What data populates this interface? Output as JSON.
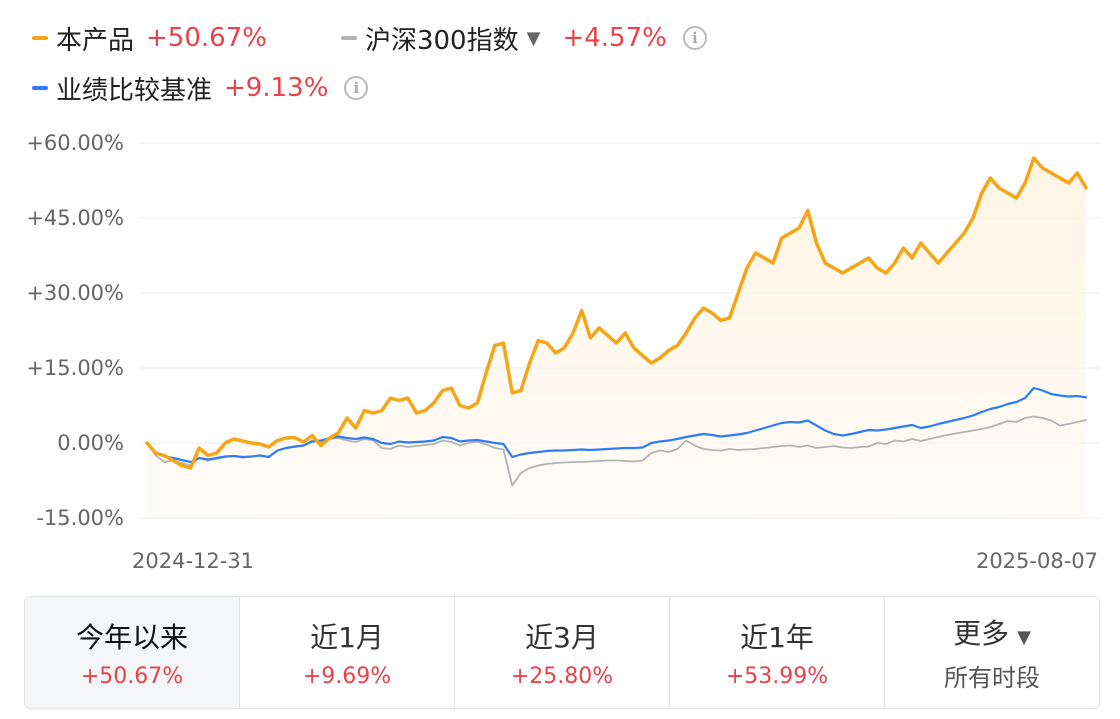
{
  "legend": [
    {
      "name": "本产品",
      "value": "+50.67%",
      "color": "#f5a516"
    },
    {
      "name": "沪深300指数",
      "value": "+4.57%",
      "color": "#b3b3b3",
      "caret": "▼",
      "info": "i"
    },
    {
      "name": "业绩比较基准",
      "value": "+9.13%",
      "color": "#2f7cf6",
      "info": "i"
    }
  ],
  "chart_data": {
    "type": "line",
    "x_start": "2024-12-31",
    "x_end": "2025-08-07",
    "xlabel": "",
    "ylabel": "",
    "ylim": [
      -15,
      60
    ],
    "yticks": [
      "+60.00%",
      "+45.00%",
      "+30.00%",
      "+15.00%",
      "0.00%",
      "-15.00%"
    ],
    "grid": true,
    "series": [
      {
        "name": "本产品",
        "color": "#f5a516",
        "values": [
          0,
          -2,
          -2.5,
          -3.5,
          -4.5,
          -5,
          -1,
          -2.5,
          -2,
          0,
          0.8,
          0.4,
          0,
          -0.2,
          -0.8,
          0.5,
          1,
          1.1,
          0.2,
          1.5,
          -0.5,
          1,
          2,
          5,
          3,
          6.5,
          6,
          6.5,
          9,
          8.5,
          9,
          6,
          6.5,
          8,
          10.5,
          11,
          7.5,
          7,
          8,
          14,
          19.5,
          20,
          10,
          10.5,
          16,
          20.5,
          20,
          18,
          19,
          22,
          26.5,
          21,
          23,
          21.5,
          20,
          22,
          19,
          17.5,
          16,
          17,
          18.5,
          19.5,
          22,
          25,
          27,
          26,
          24.5,
          25,
          30,
          35,
          38,
          37,
          36,
          41,
          42,
          43,
          46.5,
          40,
          36,
          35,
          34,
          35,
          36,
          37,
          35,
          34,
          36,
          39,
          37,
          40,
          38,
          36,
          38,
          40,
          42,
          45,
          50,
          53,
          51,
          50,
          49,
          52,
          57,
          55,
          54,
          53,
          52,
          54,
          51
        ]
      },
      {
        "name": "沪深300指数",
        "color": "#b3b3b3",
        "values": [
          0,
          -2.5,
          -3.8,
          -3.5,
          -4,
          -4.5,
          -3,
          -3.5,
          -3.2,
          -2.8,
          -2.6,
          -2.9,
          -2.7,
          -2.5,
          -2.8,
          -1.5,
          -1,
          -0.8,
          -0.5,
          0.5,
          0.2,
          0.8,
          1,
          0.5,
          0.2,
          0.8,
          0.5,
          -1,
          -1.2,
          -0.5,
          -0.8,
          -0.6,
          -0.4,
          -0.2,
          0.5,
          0.2,
          -0.5,
          0,
          0.3,
          -0.3,
          -1,
          -1.3,
          -8.5,
          -6,
          -5,
          -4.5,
          -4.2,
          -4,
          -3.9,
          -3.8,
          -3.8,
          -3.7,
          -3.6,
          -3.5,
          -3.5,
          -3.6,
          -3.7,
          -3.5,
          -2,
          -1.5,
          -1.8,
          -1.2,
          0.5,
          -0.5,
          -1.2,
          -1.4,
          -1.5,
          -1.2,
          -1.4,
          -1.3,
          -1.2,
          -1,
          -0.8,
          -0.6,
          -0.5,
          -0.8,
          -0.5,
          -1,
          -0.8,
          -0.6,
          -0.9,
          -1,
          -0.8,
          -0.7,
          0,
          -0.2,
          0.5,
          0.3,
          0.8,
          0.4,
          0.8,
          1.2,
          1.6,
          1.9,
          2.2,
          2.5,
          2.8,
          3.2,
          3.8,
          4.4,
          4.2,
          5,
          5.3,
          5,
          4.5,
          3.5,
          3.8,
          4.2,
          4.57
        ]
      },
      {
        "name": "业绩比较基准",
        "color": "#2f7cf6",
        "values": [
          0,
          -2,
          -2.7,
          -3,
          -3.4,
          -3.8,
          -3,
          -3.3,
          -3,
          -2.7,
          -2.6,
          -2.8,
          -2.7,
          -2.5,
          -2.8,
          -1.5,
          -1,
          -0.7,
          -0.5,
          0.3,
          0.5,
          1,
          1.3,
          1,
          0.8,
          1.1,
          0.8,
          0,
          -0.2,
          0.3,
          0.1,
          0.2,
          0.3,
          0.5,
          1.2,
          1,
          0.3,
          0.5,
          0.6,
          0.3,
          0,
          -0.2,
          -2.8,
          -2.3,
          -2,
          -1.8,
          -1.6,
          -1.5,
          -1.5,
          -1.4,
          -1.3,
          -1.4,
          -1.3,
          -1.2,
          -1.1,
          -1,
          -1,
          -0.9,
          0,
          0.3,
          0.5,
          0.8,
          1.2,
          1.5,
          1.8,
          1.6,
          1.3,
          1.5,
          1.7,
          2,
          2.5,
          3,
          3.5,
          4,
          4.2,
          4.1,
          4.5,
          3.5,
          2.5,
          1.8,
          1.5,
          1.8,
          2.2,
          2.6,
          2.5,
          2.7,
          3,
          3.3,
          3.6,
          3,
          3.3,
          3.8,
          4.2,
          4.6,
          5,
          5.5,
          6.2,
          6.8,
          7.2,
          7.8,
          8.2,
          9,
          11,
          10.5,
          9.8,
          9.5,
          9.3,
          9.4,
          9.13
        ]
      }
    ]
  },
  "tabs": [
    {
      "label": "今年以来",
      "value": "+50.67%"
    },
    {
      "label": "近1月",
      "value": "+9.69%"
    },
    {
      "label": "近3月",
      "value": "+25.80%"
    },
    {
      "label": "近1年",
      "value": "+53.99%"
    },
    {
      "label": "更多",
      "caret": "▼",
      "sub": "所有时段"
    }
  ]
}
